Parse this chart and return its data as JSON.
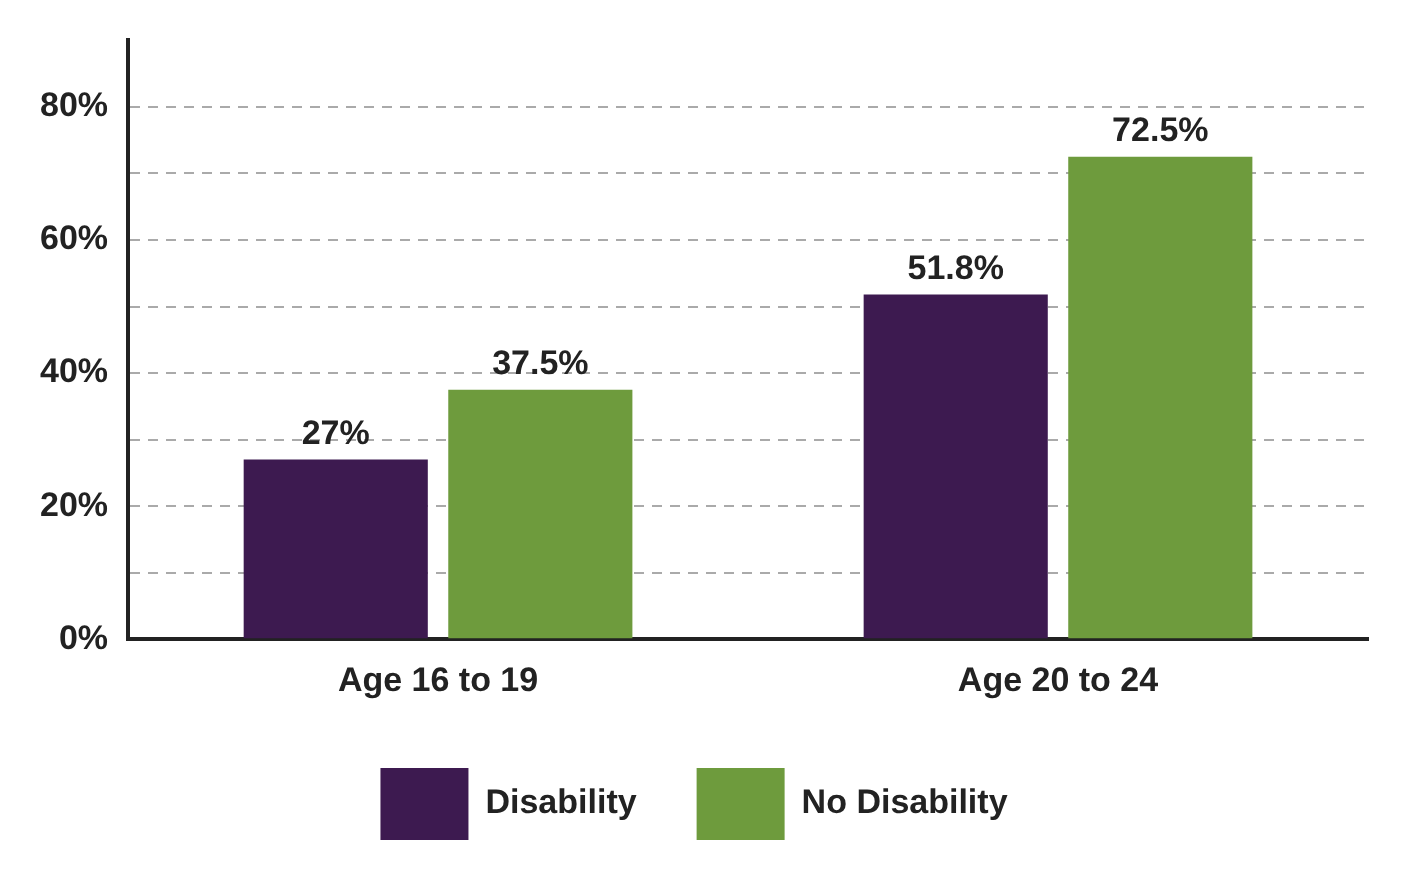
{
  "chart_data": {
    "type": "bar",
    "categories": [
      "Age 16 to 19",
      "Age 20 to 24"
    ],
    "series": [
      {
        "name": "Disability",
        "color": "#3d1a50",
        "values": [
          27,
          51.8
        ],
        "value_labels": [
          "27%",
          "51.8%"
        ]
      },
      {
        "name": "No Disability",
        "color": "#6e9b3d",
        "values": [
          37.5,
          72.5
        ],
        "value_labels": [
          "37.5%",
          "72.5%"
        ]
      }
    ],
    "ylim": [
      0,
      90
    ],
    "yticks": [
      {
        "value": 0,
        "label": "0%"
      },
      {
        "value": 10,
        "label": null
      },
      {
        "value": 20,
        "label": "20%"
      },
      {
        "value": 30,
        "label": null
      },
      {
        "value": 40,
        "label": "40%"
      },
      {
        "value": 50,
        "label": null
      },
      {
        "value": 60,
        "label": "60%"
      },
      {
        "value": 70,
        "label": null
      },
      {
        "value": 80,
        "label": "80%"
      }
    ],
    "grid": "y",
    "legend": "bottom"
  }
}
